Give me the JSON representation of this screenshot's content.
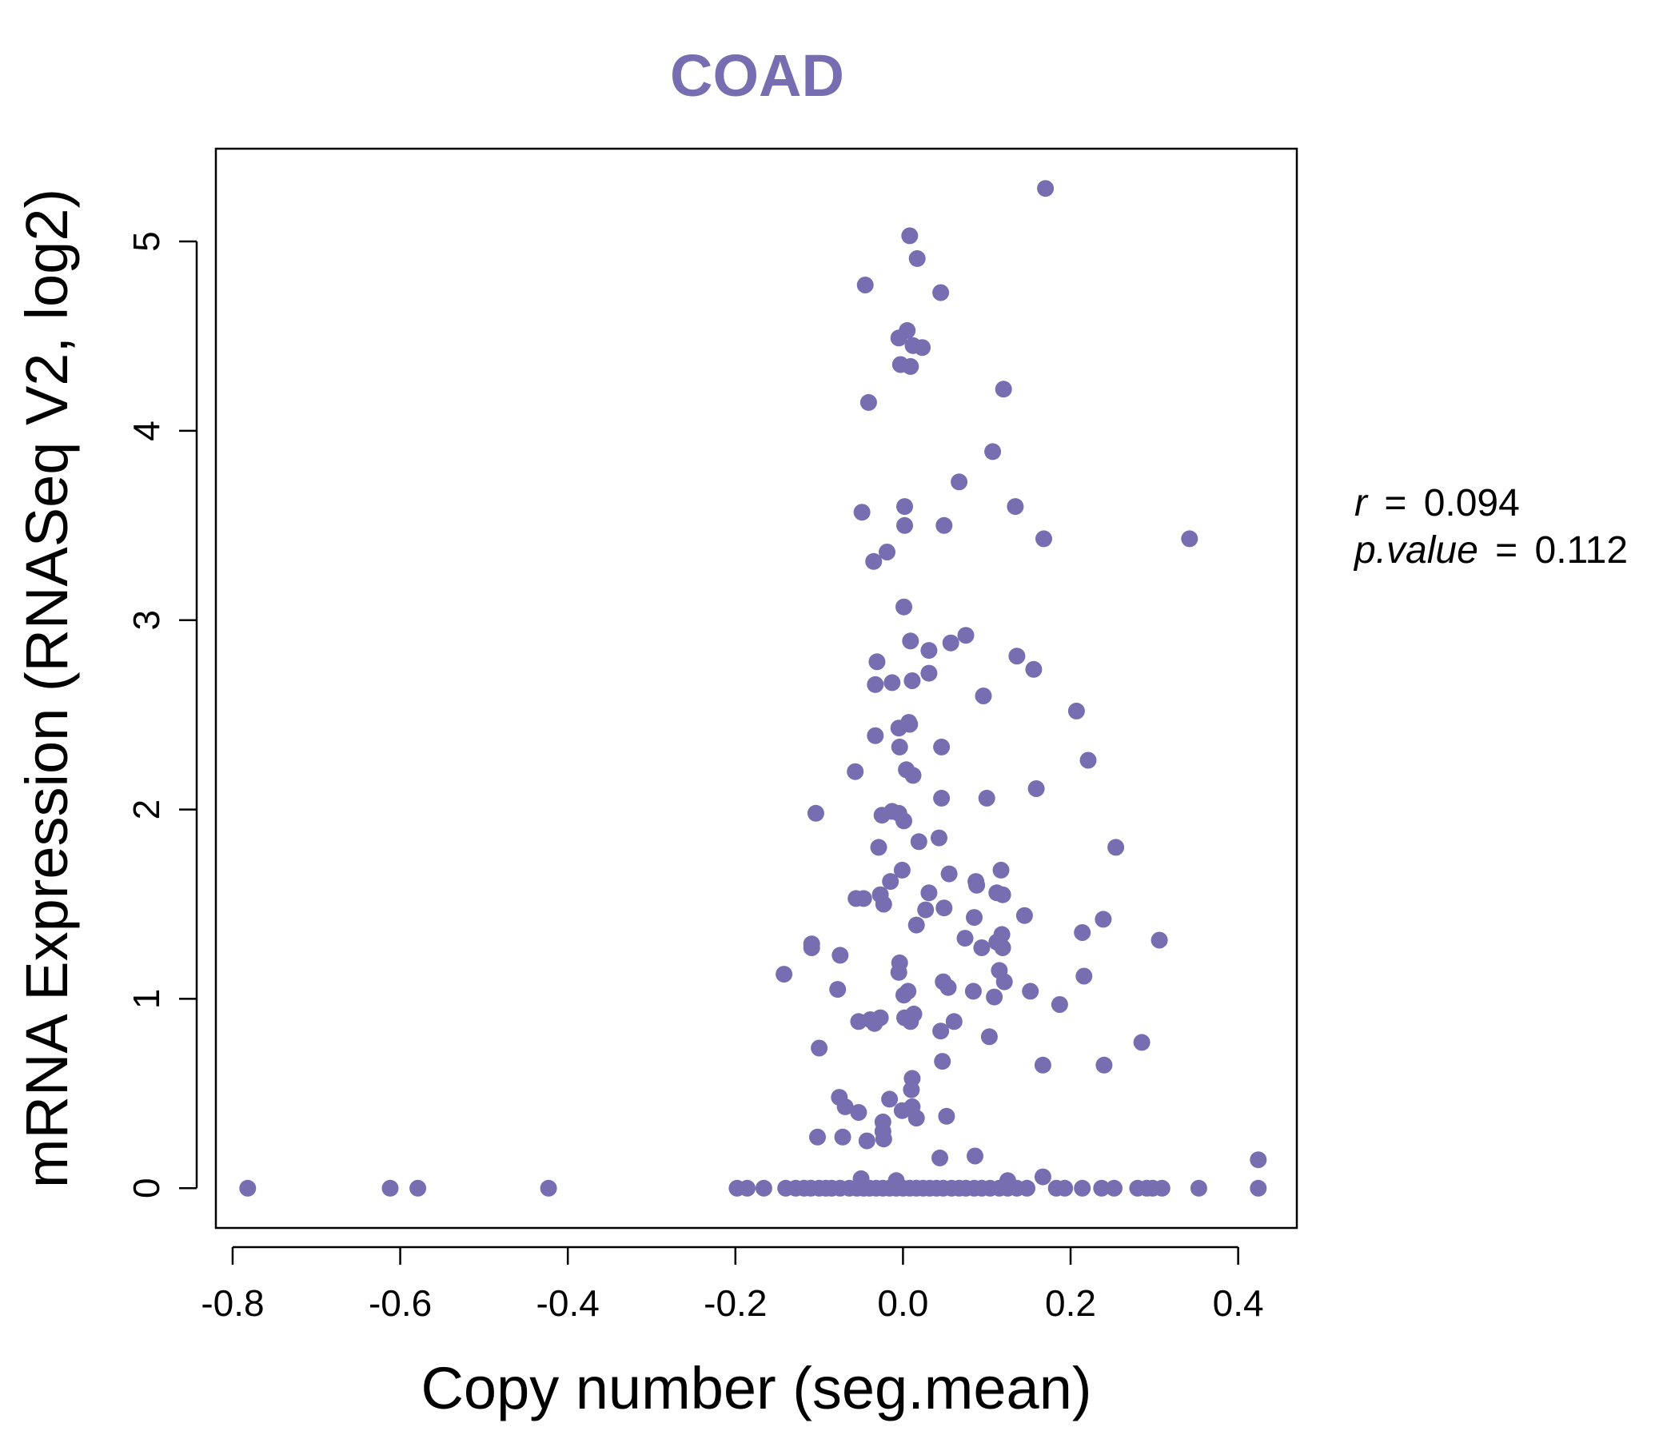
{
  "colors": {
    "accent": "#766EB0",
    "axis": "#000000",
    "background": "#ffffff"
  },
  "chart_data": {
    "type": "scatter",
    "title": "COAD",
    "xlabel": "Copy number (seg.mean)",
    "ylabel": "mRNA Expression (RNASeq V2, log2)",
    "xlim": [
      -0.82,
      0.47
    ],
    "ylim": [
      -0.21,
      5.49
    ],
    "xticks": [
      -0.8,
      -0.6,
      -0.4,
      -0.2,
      0.0,
      0.2,
      0.4
    ],
    "xtick_labels": [
      "-0.8",
      "-0.6",
      "-0.4",
      "-0.2",
      "0.0",
      "0.2",
      "0.4"
    ],
    "yticks": [
      0,
      1,
      2,
      3,
      4,
      5
    ],
    "ytick_labels": [
      "0",
      "1",
      "2",
      "3",
      "4",
      "5"
    ],
    "grid": false,
    "annotation": {
      "r_label": "r",
      "r_value": "0.094",
      "p_label": "p.value",
      "p_value": "0.112",
      "equals": "="
    },
    "series": [
      {
        "name": "samples",
        "points": [
          [
            0.17,
            5.28
          ],
          [
            0.008,
            5.03
          ],
          [
            0.017,
            4.91
          ],
          [
            -0.045,
            4.77
          ],
          [
            0.045,
            4.73
          ],
          [
            0.005,
            4.53
          ],
          [
            -0.005,
            4.49
          ],
          [
            0.012,
            4.45
          ],
          [
            0.023,
            4.44
          ],
          [
            -0.003,
            4.35
          ],
          [
            0.009,
            4.34
          ],
          [
            0.12,
            4.22
          ],
          [
            -0.041,
            4.15
          ],
          [
            0.107,
            3.89
          ],
          [
            0.067,
            3.73
          ],
          [
            -0.049,
            3.57
          ],
          [
            0.002,
            3.6
          ],
          [
            0.134,
            3.6
          ],
          [
            0.002,
            3.5
          ],
          [
            0.049,
            3.5
          ],
          [
            0.168,
            3.43
          ],
          [
            0.342,
            3.43
          ],
          [
            -0.019,
            3.36
          ],
          [
            -0.035,
            3.31
          ],
          [
            0.001,
            3.07
          ],
          [
            0.075,
            2.92
          ],
          [
            0.009,
            2.89
          ],
          [
            0.057,
            2.88
          ],
          [
            0.031,
            2.84
          ],
          [
            0.136,
            2.81
          ],
          [
            -0.031,
            2.78
          ],
          [
            0.156,
            2.74
          ],
          [
            0.031,
            2.72
          ],
          [
            0.011,
            2.68
          ],
          [
            -0.013,
            2.67
          ],
          [
            -0.033,
            2.66
          ],
          [
            0.096,
            2.6
          ],
          [
            0.207,
            2.52
          ],
          [
            0.007,
            2.46
          ],
          [
            -0.005,
            2.43
          ],
          [
            0.008,
            2.45
          ],
          [
            -0.033,
            2.39
          ],
          [
            -0.004,
            2.33
          ],
          [
            0.046,
            2.33
          ],
          [
            0.221,
            2.26
          ],
          [
            0.004,
            2.21
          ],
          [
            -0.057,
            2.2
          ],
          [
            0.012,
            2.18
          ],
          [
            0.159,
            2.11
          ],
          [
            0.046,
            2.06
          ],
          [
            0.1,
            2.06
          ],
          [
            -0.104,
            1.98
          ],
          [
            -0.013,
            1.99
          ],
          [
            -0.025,
            1.97
          ],
          [
            -0.005,
            1.98
          ],
          [
            0.001,
            1.94
          ],
          [
            0.043,
            1.85
          ],
          [
            0.019,
            1.83
          ],
          [
            0.254,
            1.8
          ],
          [
            -0.029,
            1.8
          ],
          [
            -0.001,
            1.68
          ],
          [
            0.117,
            1.68
          ],
          [
            0.055,
            1.66
          ],
          [
            0.087,
            1.62
          ],
          [
            -0.015,
            1.62
          ],
          [
            0.088,
            1.6
          ],
          [
            0.112,
            1.56
          ],
          [
            0.119,
            1.55
          ],
          [
            0.031,
            1.56
          ],
          [
            -0.027,
            1.55
          ],
          [
            -0.047,
            1.53
          ],
          [
            -0.056,
            1.53
          ],
          [
            -0.023,
            1.5
          ],
          [
            0.049,
            1.48
          ],
          [
            0.027,
            1.47
          ],
          [
            0.145,
            1.44
          ],
          [
            0.239,
            1.42
          ],
          [
            0.085,
            1.43
          ],
          [
            0.016,
            1.39
          ],
          [
            0.214,
            1.35
          ],
          [
            0.118,
            1.34
          ],
          [
            0.074,
            1.32
          ],
          [
            0.112,
            1.3
          ],
          [
            0.306,
            1.31
          ],
          [
            -0.109,
            1.29
          ],
          [
            0.094,
            1.27
          ],
          [
            0.119,
            1.27
          ],
          [
            -0.109,
            1.27
          ],
          [
            -0.075,
            1.23
          ],
          [
            -0.004,
            1.19
          ],
          [
            0.115,
            1.15
          ],
          [
            -0.005,
            1.14
          ],
          [
            -0.142,
            1.13
          ],
          [
            0.216,
            1.12
          ],
          [
            0.121,
            1.09
          ],
          [
            0.048,
            1.09
          ],
          [
            0.054,
            1.06
          ],
          [
            -0.078,
            1.05
          ],
          [
            0.152,
            1.04
          ],
          [
            0.084,
            1.04
          ],
          [
            0.006,
            1.04
          ],
          [
            0.001,
            1.02
          ],
          [
            0.109,
            1.01
          ],
          [
            0.187,
            0.97
          ],
          [
            0.013,
            0.92
          ],
          [
            0.002,
            0.9
          ],
          [
            -0.027,
            0.9
          ],
          [
            0.009,
            0.88
          ],
          [
            -0.039,
            0.89
          ],
          [
            -0.053,
            0.88
          ],
          [
            0.061,
            0.88
          ],
          [
            -0.034,
            0.87
          ],
          [
            0.045,
            0.83
          ],
          [
            0.103,
            0.8
          ],
          [
            0.285,
            0.77
          ],
          [
            -0.1,
            0.74
          ],
          [
            0.047,
            0.67
          ],
          [
            0.167,
            0.65
          ],
          [
            0.24,
            0.65
          ],
          [
            0.011,
            0.58
          ],
          [
            0.01,
            0.52
          ],
          [
            -0.076,
            0.48
          ],
          [
            -0.016,
            0.47
          ],
          [
            -0.069,
            0.43
          ],
          [
            0.011,
            0.43
          ],
          [
            -0.001,
            0.41
          ],
          [
            -0.053,
            0.4
          ],
          [
            0.016,
            0.37
          ],
          [
            0.052,
            0.38
          ],
          [
            -0.024,
            0.35
          ],
          [
            -0.024,
            0.3
          ],
          [
            -0.102,
            0.27
          ],
          [
            -0.072,
            0.27
          ],
          [
            -0.023,
            0.26
          ],
          [
            -0.043,
            0.25
          ],
          [
            0.086,
            0.17
          ],
          [
            0.044,
            0.16
          ],
          [
            0.424,
            0.15
          ],
          [
            -0.05,
            0.05
          ],
          [
            0.167,
            0.06
          ],
          [
            -0.008,
            0.04
          ],
          [
            0.125,
            0.04
          ],
          [
            -0.782,
            0
          ],
          [
            -0.612,
            0
          ],
          [
            -0.579,
            0
          ],
          [
            -0.423,
            0
          ],
          [
            -0.198,
            0
          ],
          [
            -0.186,
            0
          ],
          [
            -0.166,
            0
          ],
          [
            -0.14,
            0
          ],
          [
            -0.128,
            0
          ],
          [
            -0.118,
            0
          ],
          [
            -0.11,
            0
          ],
          [
            -0.1,
            0
          ],
          [
            -0.092,
            0
          ],
          [
            -0.085,
            0
          ],
          [
            -0.075,
            0
          ],
          [
            -0.064,
            0
          ],
          [
            -0.055,
            0
          ],
          [
            -0.047,
            0
          ],
          [
            -0.04,
            0
          ],
          [
            -0.032,
            0
          ],
          [
            -0.024,
            0
          ],
          [
            -0.016,
            0
          ],
          [
            -0.008,
            0
          ],
          [
            0.0,
            0
          ],
          [
            0.008,
            0
          ],
          [
            0.016,
            0
          ],
          [
            0.024,
            0
          ],
          [
            0.032,
            0
          ],
          [
            0.04,
            0
          ],
          [
            0.048,
            0
          ],
          [
            0.058,
            0
          ],
          [
            0.067,
            0
          ],
          [
            0.075,
            0
          ],
          [
            0.085,
            0
          ],
          [
            0.094,
            0
          ],
          [
            0.104,
            0
          ],
          [
            0.115,
            0
          ],
          [
            0.125,
            0
          ],
          [
            0.136,
            0
          ],
          [
            0.148,
            0
          ],
          [
            0.183,
            0
          ],
          [
            0.193,
            0
          ],
          [
            0.214,
            0
          ],
          [
            0.237,
            0
          ],
          [
            0.252,
            0
          ],
          [
            0.28,
            0
          ],
          [
            0.291,
            0
          ],
          [
            0.298,
            0
          ],
          [
            0.309,
            0
          ],
          [
            0.353,
            0
          ],
          [
            0.424,
            0
          ]
        ]
      }
    ]
  }
}
